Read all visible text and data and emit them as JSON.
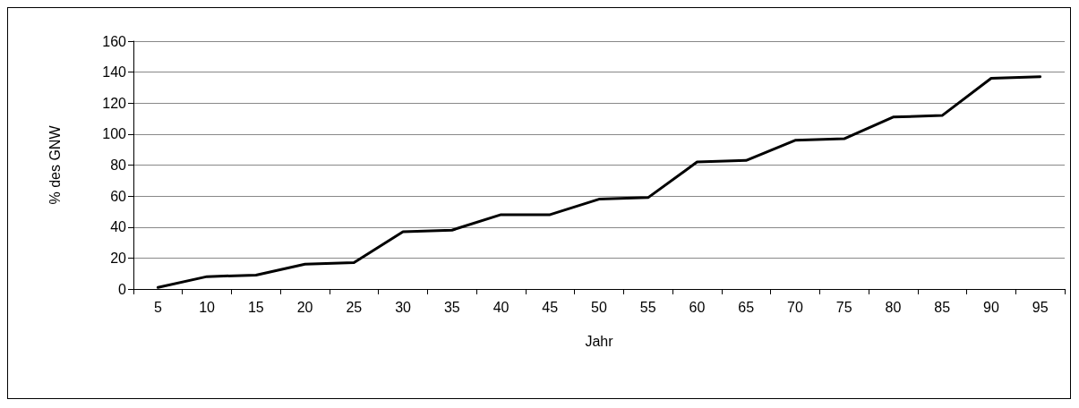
{
  "chart_data": {
    "type": "line",
    "xlabel": "Jahr",
    "ylabel": "% des GNW",
    "categories": [
      "5",
      "10",
      "15",
      "20",
      "25",
      "30",
      "35",
      "40",
      "45",
      "50",
      "55",
      "60",
      "65",
      "70",
      "75",
      "80",
      "85",
      "90",
      "95"
    ],
    "series": [
      {
        "color": "#000000",
        "values": [
          1,
          8,
          9,
          16,
          17,
          37,
          38,
          48,
          48,
          58,
          59,
          82,
          83,
          96,
          97,
          111,
          112,
          136,
          137
        ]
      }
    ],
    "ylim": [
      0,
      160
    ],
    "yticks": [
      0,
      20,
      40,
      60,
      80,
      100,
      120,
      140,
      160
    ],
    "grid": "y",
    "marker": "none",
    "line_style": "solid"
  }
}
